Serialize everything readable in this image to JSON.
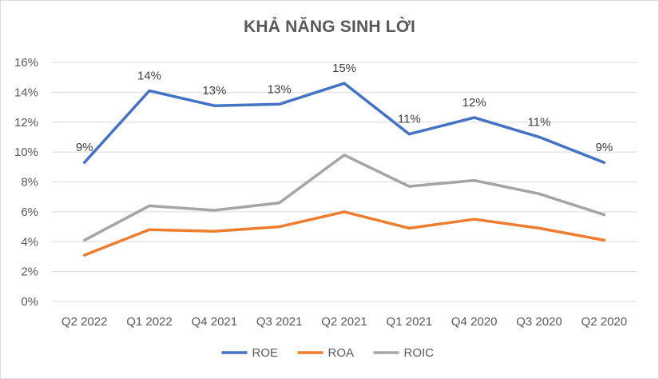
{
  "chart_data": {
    "type": "line",
    "title": "KHẢ NĂNG SINH LỜI",
    "categories": [
      "Q2 2022",
      "Q1 2022",
      "Q4 2021",
      "Q3 2021",
      "Q2 2021",
      "Q1 2021",
      "Q4 2020",
      "Q3 2020",
      "Q2 2020"
    ],
    "ylim": [
      0,
      16
    ],
    "yticks": [
      "0%",
      "2%",
      "4%",
      "6%",
      "8%",
      "10%",
      "12%",
      "14%",
      "16%"
    ],
    "grid": true,
    "legend": "bottom",
    "series": [
      {
        "name": "ROE",
        "color": "#4472c4",
        "values": [
          9.3,
          14.1,
          13.1,
          13.2,
          14.6,
          11.2,
          12.3,
          11.0,
          9.3
        ],
        "labels": [
          "9%",
          "14%",
          "13%",
          "13%",
          "15%",
          "11%",
          "12%",
          "11%",
          "9%"
        ]
      },
      {
        "name": "ROA",
        "color": "#ed7d31",
        "values": [
          3.1,
          4.8,
          4.7,
          5.0,
          6.0,
          4.9,
          5.5,
          4.9,
          4.1
        ]
      },
      {
        "name": "ROIC",
        "color": "#a5a5a5",
        "values": [
          4.1,
          6.4,
          6.1,
          6.6,
          9.8,
          7.7,
          8.1,
          7.2,
          5.8
        ]
      }
    ]
  }
}
